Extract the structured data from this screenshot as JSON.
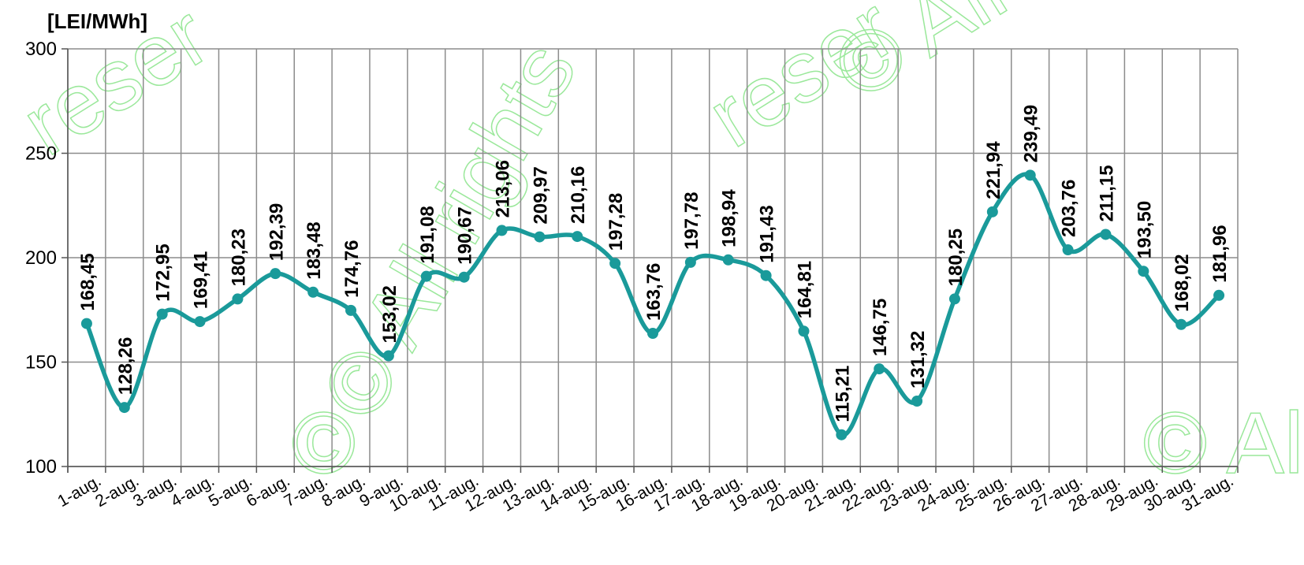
{
  "chart_data": {
    "type": "line",
    "ylabel": "[LEI/MWh]",
    "ylim": [
      100,
      300
    ],
    "yticks": [
      "100",
      "150",
      "200",
      "250",
      "300"
    ],
    "grid": true,
    "smooth": true,
    "line_color": "#1a9a9a",
    "categories": [
      "1-aug.",
      "2-aug.",
      "3-aug.",
      "4-aug.",
      "5-aug.",
      "6-aug.",
      "7-aug.",
      "8-aug.",
      "9-aug.",
      "10-aug.",
      "11-aug.",
      "12-aug.",
      "13-aug.",
      "14-aug.",
      "15-aug.",
      "16-aug.",
      "17-aug.",
      "18-aug.",
      "19-aug.",
      "20-aug.",
      "21-aug.",
      "22-aug.",
      "23-aug.",
      "24-aug.",
      "25-aug.",
      "26-aug.",
      "27-aug.",
      "28-aug.",
      "29-aug.",
      "30-aug.",
      "31-aug."
    ],
    "values": [
      168.45,
      128.26,
      172.95,
      169.41,
      180.23,
      192.39,
      183.48,
      174.76,
      153.02,
      191.08,
      190.67,
      213.06,
      209.97,
      210.16,
      197.28,
      163.76,
      197.78,
      198.94,
      191.43,
      164.81,
      115.21,
      146.75,
      131.32,
      180.25,
      221.94,
      239.49,
      203.76,
      211.15,
      193.5,
      168.02,
      181.96
    ],
    "data_labels": [
      "168,45",
      "128,26",
      "172,95",
      "169,41",
      "180,23",
      "192,39",
      "183,48",
      "174,76",
      "153,02",
      "191,08",
      "190,67",
      "213,06",
      "209,97",
      "210,16",
      "197,28",
      "163,76",
      "197,78",
      "198,94",
      "191,43",
      "164,81",
      "115,21",
      "146,75",
      "131,32",
      "180,25",
      "221,94",
      "239,49",
      "203,76",
      "211,15",
      "193,50",
      "168,02",
      "181,96"
    ]
  },
  "watermark": {
    "texts": [
      "reser",
      "reser",
      "© All rights",
      "© All rights reser",
      "©",
      "© Al"
    ],
    "color": "#9be89b"
  }
}
